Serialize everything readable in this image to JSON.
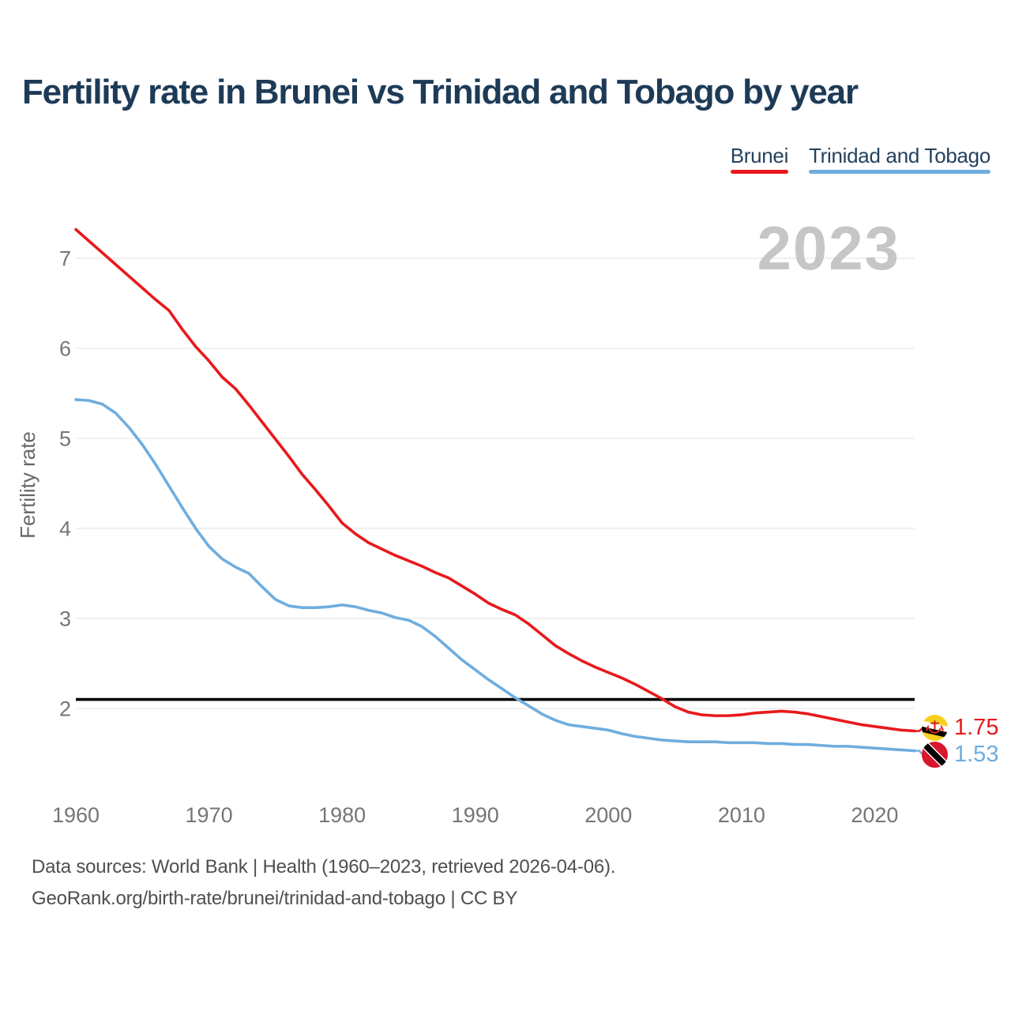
{
  "header": {
    "title": "Fertility rate in Brunei vs Trinidad and Tobago by year"
  },
  "legend": [
    {
      "label": "Brunei",
      "color": "#e8191c"
    },
    {
      "label": "Trinidad and Tobago",
      "color": "#6fadde"
    }
  ],
  "watermark": "2023",
  "colors": {
    "accent_red": "#e8191c",
    "accent_blue": "#6fadde",
    "title": "#1d3b57",
    "legend_text": "#24425e",
    "axis_text": "#757575",
    "watermark": "#c6c6c6",
    "grid": "#ebebeb",
    "reference": "#000000",
    "footer_text": "#4f4f4f",
    "background": "#ffffff"
  },
  "chart_data": {
    "type": "line",
    "title": "Fertility rate in Brunei vs Trinidad and Tobago by year",
    "xlabel": "",
    "ylabel": "Fertility rate",
    "x_ticks": [
      1960,
      1970,
      1980,
      1990,
      2000,
      2010,
      2020
    ],
    "y_ticks": [
      2,
      3,
      4,
      5,
      6,
      7
    ],
    "xlim": [
      1960,
      2023
    ],
    "ylim": [
      1.45,
      7.45
    ],
    "grid": "horizontal",
    "legend_position": "top-right",
    "reference_line": {
      "value": 2.1,
      "color": "#000000"
    },
    "x_years": [
      1960,
      1961,
      1962,
      1963,
      1964,
      1965,
      1966,
      1967,
      1968,
      1969,
      1970,
      1971,
      1972,
      1973,
      1974,
      1975,
      1976,
      1977,
      1978,
      1979,
      1980,
      1981,
      1982,
      1983,
      1984,
      1985,
      1986,
      1987,
      1988,
      1989,
      1990,
      1991,
      1992,
      1993,
      1994,
      1995,
      1996,
      1997,
      1998,
      1999,
      2000,
      2001,
      2002,
      2003,
      2004,
      2005,
      2006,
      2007,
      2008,
      2009,
      2010,
      2011,
      2012,
      2013,
      2014,
      2015,
      2016,
      2017,
      2018,
      2019,
      2020,
      2021,
      2022,
      2023
    ],
    "series": [
      {
        "name": "Brunei",
        "color": "#e8191c",
        "values": [
          7.32,
          7.19,
          7.06,
          6.93,
          6.8,
          6.67,
          6.54,
          6.42,
          6.21,
          6.02,
          5.86,
          5.68,
          5.55,
          5.37,
          5.18,
          4.99,
          4.8,
          4.6,
          4.43,
          4.25,
          4.06,
          3.94,
          3.84,
          3.77,
          3.7,
          3.64,
          3.58,
          3.51,
          3.45,
          3.36,
          3.27,
          3.17,
          3.1,
          3.04,
          2.94,
          2.82,
          2.7,
          2.61,
          2.53,
          2.46,
          2.4,
          2.34,
          2.27,
          2.19,
          2.11,
          2.02,
          1.96,
          1.93,
          1.92,
          1.92,
          1.93,
          1.95,
          1.96,
          1.97,
          1.96,
          1.94,
          1.91,
          1.88,
          1.85,
          1.82,
          1.8,
          1.78,
          1.76,
          1.75
        ]
      },
      {
        "name": "Trinidad and Tobago",
        "color": "#6fadde",
        "values": [
          5.43,
          5.42,
          5.38,
          5.28,
          5.12,
          4.93,
          4.71,
          4.47,
          4.23,
          4.0,
          3.8,
          3.66,
          3.57,
          3.5,
          3.35,
          3.21,
          3.14,
          3.12,
          3.12,
          3.13,
          3.15,
          3.13,
          3.09,
          3.06,
          3.01,
          2.98,
          2.91,
          2.8,
          2.67,
          2.54,
          2.43,
          2.32,
          2.22,
          2.12,
          2.03,
          1.94,
          1.87,
          1.82,
          1.8,
          1.78,
          1.76,
          1.72,
          1.69,
          1.67,
          1.65,
          1.64,
          1.63,
          1.63,
          1.63,
          1.62,
          1.62,
          1.62,
          1.61,
          1.61,
          1.6,
          1.6,
          1.59,
          1.58,
          1.58,
          1.57,
          1.56,
          1.55,
          1.54,
          1.53
        ]
      }
    ]
  },
  "end_labels": [
    {
      "value": "1.75",
      "color": "#e8191c",
      "flag": "brunei-flag-icon",
      "series": "Brunei"
    },
    {
      "value": "1.53",
      "color": "#6fadde",
      "flag": "trinidad-and-tobago-flag-icon",
      "series": "Trinidad and Tobago"
    }
  ],
  "footer": {
    "line1": "Data sources: World Bank | Health (1960–2023, retrieved 2026-04-06).",
    "line2": "GeoRank.org/birth-rate/brunei/trinidad-and-tobago | CC BY"
  }
}
